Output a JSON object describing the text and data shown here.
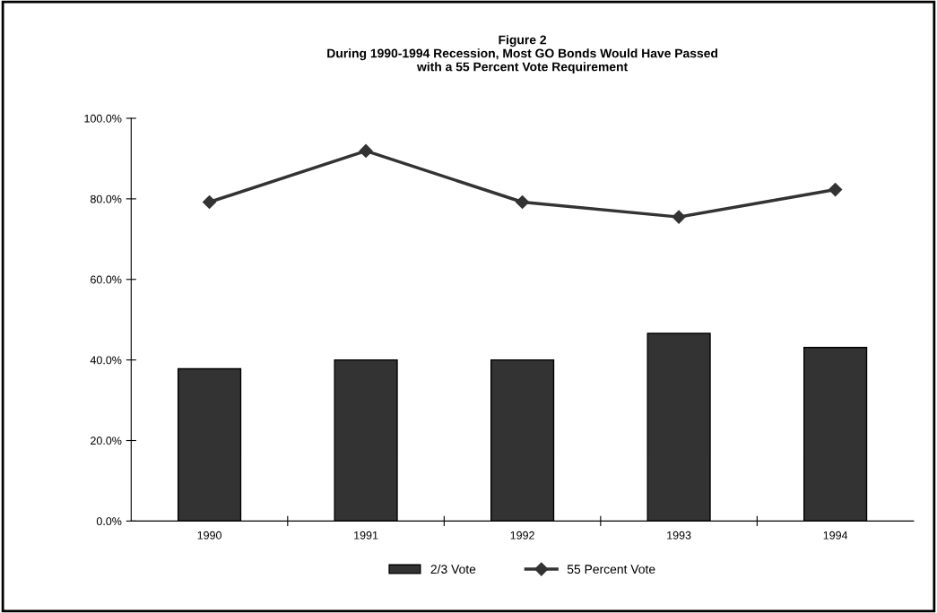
{
  "chart_data": {
    "type": "bar",
    "title": "Figure 2\nDuring 1990-1994 Recession, Most GO Bonds Would Have Passed\nwith a 55 Percent Vote Requirement",
    "categories": [
      "1990",
      "1991",
      "1992",
      "1993",
      "1994"
    ],
    "series": [
      {
        "name": "2/3 Vote",
        "color": "#333333",
        "values": [
          37.8,
          40.0,
          40.0,
          46.6,
          43.1
        ]
      },
      {
        "name": "55 Percent Vote",
        "type": "line",
        "color": "#333333",
        "marker": "diamond",
        "values": [
          79.2,
          91.9,
          79.2,
          75.5,
          82.3
        ]
      }
    ],
    "ylim": [
      0,
      100
    ],
    "yticks": [
      {
        "value": 0,
        "label": "0.0%"
      },
      {
        "value": 20,
        "label": "20.0%"
      },
      {
        "value": 40,
        "label": "40.0%"
      },
      {
        "value": 60,
        "label": "60.0%"
      },
      {
        "value": 80,
        "label": "80.0%"
      },
      {
        "value": 100,
        "label": "100.0%"
      }
    ],
    "grid": false,
    "legend": "bottom"
  }
}
